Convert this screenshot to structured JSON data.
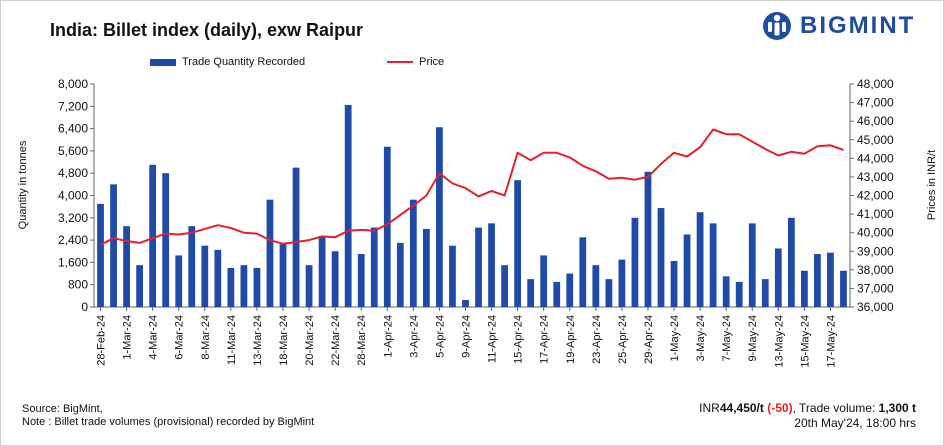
{
  "header": {
    "title": "India: Billet index (daily), exw Raipur",
    "brand": "BIGMINT",
    "logo_icon": "bigmint-logo-icon",
    "brand_color": "#1f4d9b"
  },
  "legend": {
    "bar_label": "Trade Quantity Recorded",
    "line_label": "Price"
  },
  "footer": {
    "source": "Source: BigMint,",
    "note": "Note : Billet trade volumes (provisional) recorded by BigMint",
    "currency": "INR",
    "price_value": "44,450/t",
    "change": "(-50)",
    "trade_label": ", Trade volume:",
    "trade_value": "1,300 t",
    "datetime": "20th May'24, 18:00 hrs"
  },
  "chart_data": {
    "type": "bar+line",
    "title": "India: Billet index (daily), exw Raipur",
    "ylabel_left": "Quantity in tonnes",
    "ylabel_right": "Prices in INR/t",
    "ylim_left": [
      0,
      8000
    ],
    "yticks_left": [
      "0",
      "800",
      "1,600",
      "2,400",
      "3,200",
      "4,000",
      "4,800",
      "5,600",
      "6,400",
      "7,200",
      "8,000"
    ],
    "ylim_right": [
      36000,
      48000
    ],
    "yticks_right": [
      "36,000",
      "37,000",
      "38,000",
      "39,000",
      "40,000",
      "41,000",
      "42,000",
      "43,000",
      "44,000",
      "45,000",
      "46,000",
      "47,000",
      "48,000"
    ],
    "x_tick_labels": [
      "28-Feb-24",
      "1-Mar-24",
      "4-Mar-24",
      "6-Mar-24",
      "8-Mar-24",
      "11-Mar-24",
      "13-Mar-24",
      "18-Mar-24",
      "20-Mar-24",
      "22-Mar-24",
      "28-Mar-24",
      "1-Apr-24",
      "3-Apr-24",
      "5-Apr-24",
      "9-Apr-24",
      "11-Apr-24",
      "15-Apr-24",
      "17-Apr-24",
      "19-Apr-24",
      "23-Apr-24",
      "25-Apr-24",
      "29-Apr-24",
      "1-May-24",
      "3-May-24",
      "7-May-24",
      "9-May-24",
      "13-May-24",
      "15-May-24",
      "17-May-24"
    ],
    "colors": {
      "bar": "#1f4aa8",
      "line": "#e8202a"
    },
    "series": [
      {
        "name": "Trade Quantity Recorded",
        "type": "bar",
        "axis": "left",
        "values": [
          3700,
          4400,
          2900,
          1500,
          5100,
          4800,
          1850,
          2900,
          2200,
          2050,
          1400,
          1500,
          1400,
          3850,
          2250,
          5000,
          1500,
          2550,
          2000,
          7250,
          1900,
          2850,
          5750,
          2300,
          3850,
          2800,
          6450,
          2200,
          250,
          2850,
          3000,
          1500,
          4550,
          1000,
          1850,
          900,
          1200,
          2500,
          1500,
          1000,
          1700,
          3200,
          4850,
          3550,
          1650,
          2600,
          3400,
          3000,
          1100,
          900,
          3000,
          1000,
          2100,
          3200,
          1300,
          1900,
          1950,
          1300
        ]
      },
      {
        "name": "Price",
        "type": "line",
        "axis": "right",
        "values": [
          39350,
          39700,
          39550,
          39450,
          39700,
          39950,
          39900,
          40000,
          40200,
          40400,
          40250,
          40000,
          39950,
          39600,
          39400,
          39500,
          39600,
          39800,
          39750,
          40100,
          40150,
          40100,
          40450,
          40950,
          41450,
          42000,
          43200,
          42650,
          42400,
          41950,
          42250,
          42000,
          44300,
          43900,
          44300,
          44300,
          44050,
          43600,
          43300,
          42900,
          42950,
          42850,
          43000,
          43700,
          44300,
          44100,
          44600,
          45550,
          45300,
          45300,
          44900,
          44500,
          44150,
          44350,
          44250,
          44650,
          44700,
          44450
        ]
      }
    ]
  }
}
